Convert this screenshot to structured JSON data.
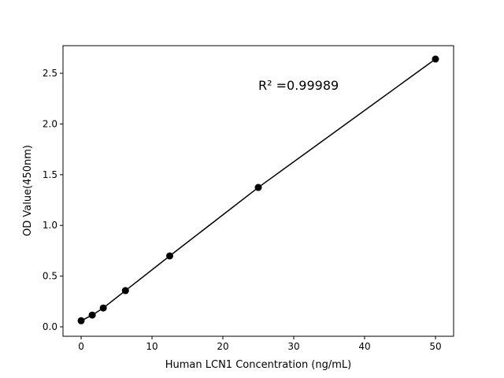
{
  "chart_data": {
    "type": "line",
    "title": "",
    "xlabel": "Human LCN1 Concentration (ng/mL)",
    "ylabel": "OD Value(450nm)",
    "xlim": [
      -2.56,
      52.56
    ],
    "ylim": [
      -0.093,
      2.772
    ],
    "xticks": [
      0,
      10,
      20,
      30,
      40,
      50
    ],
    "yticks": [
      0.0,
      0.5,
      1.0,
      1.5,
      2.0,
      2.5
    ],
    "xtick_labels": [
      "0",
      "10",
      "20",
      "30",
      "40",
      "50"
    ],
    "ytick_labels": [
      "0.0",
      "0.5",
      "1.0",
      "1.5",
      "2.0",
      "2.5"
    ],
    "grid": false,
    "series": [
      {
        "x": [
          0,
          1.5625,
          3.125,
          6.25,
          12.5,
          25,
          50
        ],
        "y": [
          0.06,
          0.116,
          0.186,
          0.357,
          0.699,
          1.374,
          2.64
        ],
        "color": "#000000",
        "marker": "circle"
      }
    ],
    "annotation": {
      "text": "R² =0.99989",
      "x": 25,
      "y": 2.37
    }
  }
}
